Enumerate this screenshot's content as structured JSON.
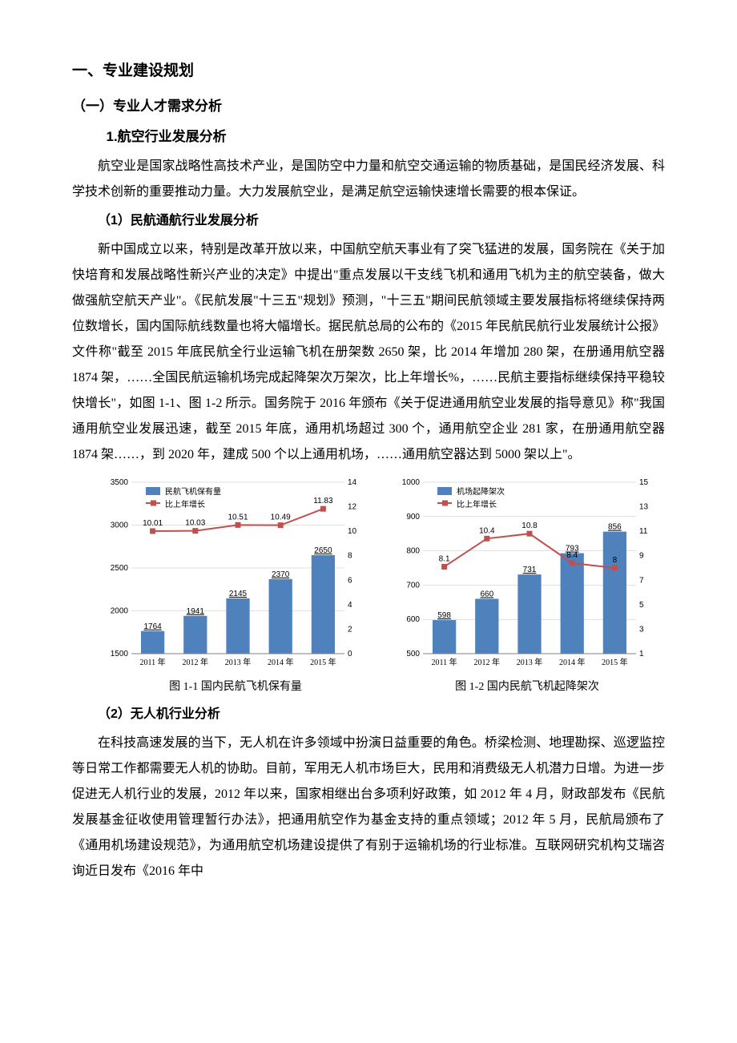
{
  "headings": {
    "h1": "一、专业建设规划",
    "h2": "（一）专业人才需求分析",
    "h3_1": "1.航空行业发展分析",
    "h4_1": "（1）民航通航行业发展分析",
    "h4_2": "（2）无人机行业分析"
  },
  "paragraphs": {
    "p1": "航空业是国家战略性高技术产业，是国防空中力量和航空交通运输的物质基础，是国民经济发展、科学技术创新的重要推动力量。大力发展航空业，是满足航空运输快速增长需要的根本保证。",
    "p2": "新中国成立以来，特别是改革开放以来，中国航空航天事业有了突飞猛进的发展，国务院在《关于加快培育和发展战略性新兴产业的决定》中提出\"重点发展以干支线飞机和通用飞机为主的航空装备，做大做强航空航天产业\"。《民航发展\"十三五\"规划》预测，\"十三五\"期间民航领域主要发展指标将继续保持两位数增长，国内国际航线数量也将大幅增长。据民航总局的公布的《2015 年民航民航行业发展统计公报》文件称\"截至 2015 年底民航全行业运输飞机在册架数 2650 架，比 2014 年增加 280 架，在册通用航空器 1874 架，……全国民航运输机场完成起降架次万架次，比上年增长%，……民航主要指标继续保持平稳较快增长\"，如图 1-1、图 1-2 所示。国务院于 2016 年颁布《关于促进通用航空业发展的指导意见》称\"我国通用航空业发展迅速，截至 2015 年底，通用机场超过 300 个，通用航空企业 281 家，在册通用航空器 1874 架……，到 2020 年，建成 500 个以上通用机场，……通用航空器达到 5000 架以上\"。",
    "p3": "在科技高速发展的当下，无人机在许多领域中扮演日益重要的角色。桥梁检测、地理勘探、巡逻监控等日常工作都需要无人机的协助。目前，军用无人机市场巨大，民用和消费级无人机潜力日增。为进一步促进无人机行业的发展，2012 年以来，国家相继出台多项利好政策，如 2012 年 4 月，财政部发布《民航发展基金征收使用管理暂行办法》，把通用航空作为基金支持的重点领域；2012 年 5 月，民航局颁布了《通用机场建设规范》，为通用航空机场建设提供了有别于运输机场的行业标准。互联网研究机构艾瑞咨询近日发布《2016 年中"
  },
  "chart1": {
    "type": "bar+line",
    "caption": "图 1-1  国内民航飞机保有量",
    "legend_bar": "民航飞机保有量",
    "legend_line": "比上年增长",
    "categories": [
      "2011 年",
      "2012 年",
      "2013 年",
      "2014 年",
      "2015 年"
    ],
    "bar_values": [
      1764,
      1941,
      2145,
      2370,
      2650
    ],
    "bar_labels": [
      "1764",
      "1941",
      "2145",
      "2370",
      "2650"
    ],
    "line_values": [
      10.01,
      10.03,
      10.51,
      10.49,
      11.83
    ],
    "line_labels": [
      "10.01",
      "10.03",
      "10.51",
      "10.49",
      "11.83"
    ],
    "y1_min": 1500,
    "y1_max": 3500,
    "y1_step": 500,
    "y2_min": 0,
    "y2_max": 14,
    "y2_step": 2,
    "bar_color": "#4f81bd",
    "line_color": "#c0504d",
    "marker_color": "#c0504d",
    "grid_color": "#bfbfbf",
    "bg_color": "#ffffff",
    "text_color": "#000000",
    "axis_fontsize": 10,
    "legend_fontsize": 10,
    "label_fontsize": 10,
    "bar_width": 0.55
  },
  "chart2": {
    "type": "bar+line",
    "caption": "图 1-2  国内民航飞机起降架次",
    "legend_bar": "机场起降架次",
    "legend_line": "比上年增长",
    "categories": [
      "2011 年",
      "2012 年",
      "2013 年",
      "2014 年",
      "2015 年"
    ],
    "bar_values": [
      598,
      660,
      731,
      793,
      856
    ],
    "bar_labels": [
      "598",
      "660",
      "731",
      "793",
      "856"
    ],
    "line_values": [
      8.1,
      10.4,
      10.8,
      8.4,
      8
    ],
    "line_labels": [
      "8.1",
      "10.4",
      "10.8",
      "8.4",
      "8"
    ],
    "y1_min": 500,
    "y1_max": 1000,
    "y1_step": 100,
    "y2_min": 1,
    "y2_max": 15,
    "y2_step": 2,
    "bar_color": "#4f81bd",
    "line_color": "#c0504d",
    "marker_color": "#c0504d",
    "grid_color": "#bfbfbf",
    "bg_color": "#ffffff",
    "text_color": "#000000",
    "axis_fontsize": 10,
    "legend_fontsize": 10,
    "label_fontsize": 10,
    "bar_width": 0.55
  }
}
